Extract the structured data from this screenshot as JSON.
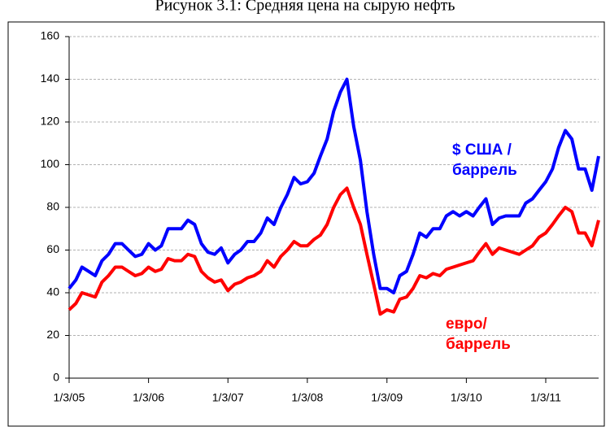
{
  "chart_data": {
    "type": "line",
    "title": "Рисунок 3.1: Средняя цена на сырую нефть",
    "x": [
      "1/3/05",
      "2/3/05",
      "3/3/05",
      "4/3/05",
      "5/3/05",
      "6/3/05",
      "7/3/05",
      "8/3/05",
      "9/3/05",
      "10/3/05",
      "11/3/05",
      "12/3/05",
      "1/3/06",
      "2/3/06",
      "3/3/06",
      "4/3/06",
      "5/3/06",
      "6/3/06",
      "7/3/06",
      "8/3/06",
      "9/3/06",
      "10/3/06",
      "11/3/06",
      "12/3/06",
      "1/3/07",
      "2/3/07",
      "3/3/07",
      "4/3/07",
      "5/3/07",
      "6/3/07",
      "7/3/07",
      "8/3/07",
      "9/3/07",
      "10/3/07",
      "11/3/07",
      "12/3/07",
      "1/3/08",
      "2/3/08",
      "3/3/08",
      "4/3/08",
      "5/3/08",
      "6/3/08",
      "7/3/08",
      "8/3/08",
      "9/3/08",
      "10/3/08",
      "11/3/08",
      "12/3/08",
      "1/3/09",
      "2/3/09",
      "3/3/09",
      "4/3/09",
      "5/3/09",
      "6/3/09",
      "7/3/09",
      "8/3/09",
      "9/3/09",
      "10/3/09",
      "11/3/09",
      "12/3/09",
      "1/3/10",
      "2/3/10",
      "3/3/10",
      "4/3/10",
      "5/3/10",
      "6/3/10",
      "7/3/10",
      "8/3/10",
      "9/3/10",
      "10/3/10",
      "11/3/10",
      "12/3/10",
      "1/3/11",
      "2/3/11",
      "3/3/11",
      "4/3/11",
      "5/3/11",
      "6/3/11",
      "7/3/11",
      "8/3/11",
      "9/3/11"
    ],
    "series": [
      {
        "name": "$ США /\nбаррель",
        "color": "#0000ff",
        "values": [
          42,
          46,
          52,
          50,
          48,
          55,
          58,
          63,
          63,
          60,
          57,
          58,
          63,
          60,
          62,
          70,
          70,
          70,
          74,
          72,
          63,
          59,
          58,
          61,
          54,
          58,
          60,
          64,
          64,
          68,
          75,
          72,
          80,
          86,
          94,
          91,
          92,
          96,
          104,
          112,
          125,
          134,
          140,
          118,
          102,
          78,
          58,
          42,
          42,
          40,
          48,
          50,
          58,
          68,
          66,
          70,
          70,
          76,
          78,
          76,
          78,
          76,
          80,
          84,
          72,
          75,
          76,
          76,
          76,
          82,
          84,
          88,
          92,
          98,
          108,
          116,
          112,
          98,
          98,
          88,
          104
        ]
      },
      {
        "name": "евро/\nбаррель",
        "color": "#ff0000",
        "values": [
          32,
          35,
          40,
          39,
          38,
          45,
          48,
          52,
          52,
          50,
          48,
          49,
          52,
          50,
          51,
          56,
          55,
          55,
          58,
          57,
          50,
          47,
          45,
          46,
          41,
          44,
          45,
          47,
          48,
          50,
          55,
          52,
          57,
          60,
          64,
          62,
          62,
          65,
          67,
          72,
          80,
          86,
          89,
          80,
          72,
          58,
          44,
          30,
          32,
          31,
          37,
          38,
          42,
          48,
          47,
          49,
          48,
          51,
          52,
          53,
          54,
          55,
          59,
          63,
          58,
          61,
          60,
          59,
          58,
          60,
          62,
          66,
          68,
          72,
          76,
          80,
          78,
          68,
          68,
          62,
          74
        ]
      }
    ],
    "xlim": [
      "1/3/05",
      "9/3/11"
    ],
    "xticks": [
      "1/3/05",
      "1/3/06",
      "1/3/07",
      "1/3/08",
      "1/3/09",
      "1/3/10",
      "1/3/11"
    ],
    "ylim": [
      0,
      160
    ],
    "yticks": [
      0,
      20,
      40,
      60,
      80,
      100,
      120,
      140,
      160
    ],
    "grid": true
  }
}
